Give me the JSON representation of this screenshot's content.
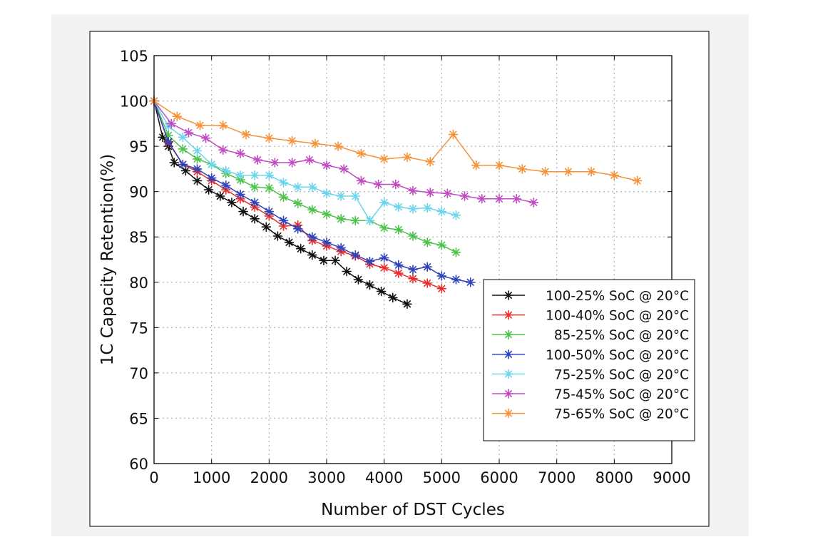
{
  "colors": {
    "outer_background": "#f3f3f3",
    "figure_background": "#ffffff",
    "grid": "#b9b9b9",
    "axis": "#000000"
  },
  "chart_data": {
    "type": "line",
    "title": "",
    "xlabel": "Number of DST Cycles",
    "ylabel": "1C Capacity Retention(%)",
    "xlim": [
      0,
      9000
    ],
    "ylim": [
      60,
      105
    ],
    "xticks": [
      0,
      1000,
      2000,
      3000,
      4000,
      5000,
      6000,
      7000,
      8000,
      9000
    ],
    "yticks": [
      60,
      65,
      70,
      75,
      80,
      85,
      90,
      95,
      100,
      105
    ],
    "grid": true,
    "legend_position": "lower-right",
    "marker": "asterisk",
    "series": [
      {
        "name": "100-25% SoC @ 20°C",
        "color": "#111111",
        "x": [
          0,
          150,
          250,
          350,
          550,
          750,
          950,
          1150,
          1350,
          1550,
          1750,
          1950,
          2150,
          2350,
          2550,
          2750,
          2950,
          3150,
          3350,
          3550,
          3750,
          3950,
          4150,
          4400
        ],
        "y": [
          100,
          96,
          95,
          93.2,
          92.3,
          91.2,
          90.2,
          89.5,
          88.8,
          87.8,
          87,
          86.1,
          85.1,
          84.4,
          83.7,
          83,
          82.4,
          82.4,
          81.2,
          80.3,
          79.7,
          79,
          78.3,
          77.6
        ]
      },
      {
        "name": "100-40% SoC @ 20°C",
        "color": "#e8302e",
        "x": [
          0,
          250,
          500,
          750,
          1000,
          1250,
          1500,
          1750,
          2000,
          2250,
          2500,
          2750,
          3000,
          3250,
          3500,
          3750,
          4000,
          4250,
          4500,
          4750,
          5000
        ],
        "y": [
          100,
          95.4,
          93,
          92.2,
          91.2,
          90.2,
          89.2,
          88.3,
          87.3,
          86.2,
          86.3,
          84.6,
          84,
          83.4,
          82.9,
          82,
          81.6,
          81,
          80.4,
          79.9,
          79.3
        ]
      },
      {
        "name": "85-25% SoC @ 20°C",
        "color": "#4ec24a",
        "x": [
          0,
          250,
          500,
          750,
          1000,
          1250,
          1500,
          1750,
          2000,
          2250,
          2500,
          2750,
          3000,
          3250,
          3500,
          3750,
          4000,
          4250,
          4500,
          4750,
          5000,
          5250
        ],
        "y": [
          100,
          96.2,
          94.7,
          93.6,
          93,
          92,
          91.3,
          90.5,
          90.4,
          89.4,
          88.7,
          88,
          87.5,
          87,
          86.8,
          86.8,
          86,
          85.8,
          85.1,
          84.4,
          84.1,
          83.3
        ]
      },
      {
        "name": "100-50% SoC @ 20°C",
        "color": "#2e44b8",
        "x": [
          0,
          250,
          500,
          750,
          1000,
          1250,
          1500,
          1750,
          2000,
          2250,
          2500,
          2750,
          3000,
          3250,
          3500,
          3750,
          4000,
          4250,
          4500,
          4750,
          5000,
          5250,
          5500
        ],
        "y": [
          100,
          95.5,
          93,
          92.5,
          91.5,
          90.7,
          89.7,
          88.8,
          87.8,
          86.8,
          85.9,
          85,
          84.4,
          83.8,
          83,
          82.3,
          82.7,
          81.9,
          81.4,
          81.7,
          80.7,
          80.3,
          80
        ]
      },
      {
        "name": "75-25% SoC @ 20°C",
        "color": "#6cd4ec",
        "x": [
          0,
          250,
          500,
          750,
          1000,
          1250,
          1500,
          1750,
          2000,
          2250,
          2500,
          2750,
          3000,
          3250,
          3500,
          3750,
          4000,
          4250,
          4500,
          4750,
          5000,
          5250
        ],
        "y": [
          100,
          97.2,
          96,
          94.5,
          93,
          92.3,
          91.8,
          91.8,
          91.8,
          91,
          90.5,
          90.5,
          89.8,
          89.5,
          89.5,
          86.8,
          88.8,
          88.3,
          88.1,
          88.2,
          87.8,
          87.4
        ]
      },
      {
        "name": "75-45% SoC @ 20°C",
        "color": "#c04cc2",
        "x": [
          0,
          300,
          600,
          900,
          1200,
          1500,
          1800,
          2100,
          2400,
          2700,
          3000,
          3300,
          3600,
          3900,
          4200,
          4500,
          4800,
          5100,
          5400,
          5700,
          6000,
          6300,
          6600
        ],
        "y": [
          100,
          97.5,
          96.5,
          95.9,
          94.6,
          94.2,
          93.5,
          93.2,
          93.2,
          93.5,
          92.9,
          92.5,
          91.2,
          90.8,
          90.8,
          90.1,
          89.9,
          89.8,
          89.5,
          89.2,
          89.2,
          89.2,
          88.8
        ]
      },
      {
        "name": "75-65% SoC @ 20°C",
        "color": "#f5923a",
        "x": [
          0,
          400,
          800,
          1200,
          1600,
          2000,
          2400,
          2800,
          3200,
          3600,
          4000,
          4400,
          4800,
          5200,
          5600,
          6000,
          6400,
          6800,
          7200,
          7600,
          8000,
          8400
        ],
        "y": [
          100,
          98.3,
          97.3,
          97.3,
          96.3,
          95.9,
          95.6,
          95.3,
          95,
          94.2,
          93.6,
          93.8,
          93.3,
          96.3,
          92.9,
          92.9,
          92.5,
          92.2,
          92.2,
          92.2,
          91.8,
          91.2
        ]
      }
    ]
  }
}
